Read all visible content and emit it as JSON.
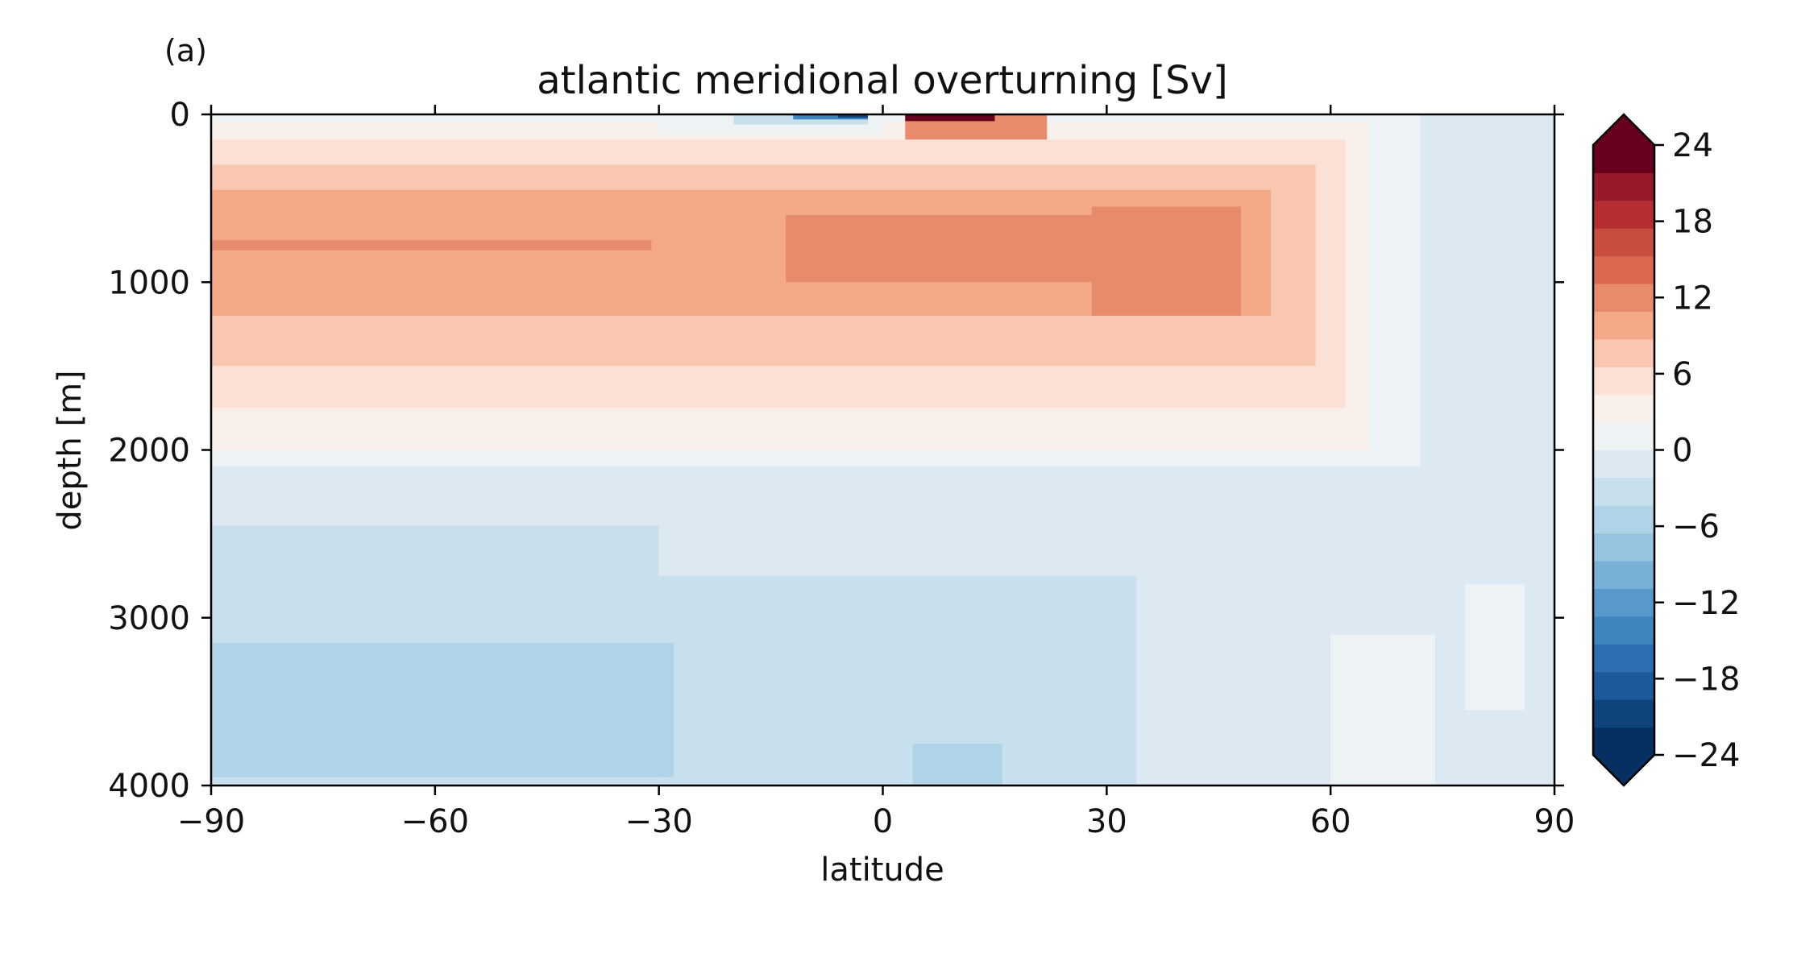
{
  "panel_label": "(a)",
  "colors": {
    "levels": [
      "#053061",
      "#0f437b",
      "#1c5a99",
      "#2b6fb0",
      "#3c85bd",
      "#5699ca",
      "#78b0d6",
      "#97c4e0",
      "#b0d4e7",
      "#c8e0ed",
      "#dce9f2",
      "#edf2f5",
      "#f9f0ec",
      "#fce0d3",
      "#f9c7b0",
      "#f4a989",
      "#e88b6d",
      "#d9684f",
      "#c84e41",
      "#b72e32",
      "#961a2c",
      "#67001f"
    ],
    "under": "#053061",
    "over": "#67001f"
  },
  "chart_data": {
    "type": "heatmap",
    "title": "atlantic meridional overturning [Sv]",
    "xlabel": "latitude",
    "ylabel": "depth [m]",
    "xlim": [
      -90,
      90
    ],
    "ylim": [
      0,
      4000
    ],
    "y_inverted": true,
    "xticks": [
      -90,
      -60,
      -30,
      0,
      30,
      60,
      90
    ],
    "xtick_labels": [
      "−90",
      "−60",
      "−30",
      "0",
      "30",
      "60",
      "90"
    ],
    "yticks": [
      0,
      1000,
      2000,
      3000,
      4000
    ],
    "ytick_labels": [
      "0",
      "1000",
      "2000",
      "3000",
      "4000"
    ],
    "colorbar": {
      "min": -24,
      "max": 24,
      "ticks": [
        -24,
        -18,
        -12,
        -6,
        0,
        6,
        12,
        18,
        24
      ],
      "tick_labels": [
        "−24",
        "−18",
        "−12",
        "−6",
        "0",
        "6",
        "12",
        "18",
        "24"
      ],
      "extend": "both"
    },
    "regions": [
      {
        "x0": -90,
        "x1": 90,
        "y0": 0,
        "y1": 4000,
        "value": -1
      },
      {
        "x0": -90,
        "x1": 72,
        "y0": 0,
        "y1": 2100,
        "value": 1
      },
      {
        "x0": -90,
        "x1": 65,
        "y0": 50,
        "y1": 2000,
        "value": 3
      },
      {
        "x0": -90,
        "x1": 62,
        "y0": 150,
        "y1": 1750,
        "value": 5
      },
      {
        "x0": -90,
        "x1": 58,
        "y0": 300,
        "y1": 1500,
        "value": 8
      },
      {
        "x0": -90,
        "x1": 52,
        "y0": 450,
        "y1": 1200,
        "value": 10
      },
      {
        "x0": -90,
        "x1": -31,
        "y0": 750,
        "y1": 810,
        "value": 12
      },
      {
        "x0": -13,
        "x1": 48,
        "y0": 600,
        "y1": 1000,
        "value": 12
      },
      {
        "x0": 28,
        "x1": 48,
        "y0": 550,
        "y1": 1200,
        "value": 12
      },
      {
        "x0": 3,
        "x1": 22,
        "y0": 0,
        "y1": 150,
        "value": 12
      },
      {
        "x0": 3,
        "x1": 15,
        "y0": 0,
        "y1": 40,
        "value": 22
      },
      {
        "x0": -30,
        "x1": 0,
        "y0": 0,
        "y1": 120,
        "value": 0
      },
      {
        "x0": -20,
        "x1": -2,
        "y0": 0,
        "y1": 60,
        "value": -4
      },
      {
        "x0": -12,
        "x1": -2,
        "y0": 0,
        "y1": 30,
        "value": -14
      },
      {
        "x0": -6,
        "x1": -2,
        "y0": 0,
        "y1": 20,
        "value": -20
      },
      {
        "x0": -90,
        "x1": 72,
        "y0": 2100,
        "y1": 2450,
        "value": -1
      },
      {
        "x0": -90,
        "x1": -30,
        "y0": 2450,
        "y1": 4000,
        "value": -3
      },
      {
        "x0": -30,
        "x1": 34,
        "y0": 2750,
        "y1": 4000,
        "value": -3
      },
      {
        "x0": -90,
        "x1": -28,
        "y0": 3150,
        "y1": 3950,
        "value": -5
      },
      {
        "x0": 4,
        "x1": 16,
        "y0": 3750,
        "y1": 4000,
        "value": -5
      },
      {
        "x0": 60,
        "x1": 74,
        "y0": 3100,
        "y1": 4000,
        "value": 1
      },
      {
        "x0": 78,
        "x1": 86,
        "y0": 2800,
        "y1": 3550,
        "value": 1
      },
      {
        "x0": 86,
        "x1": 90,
        "y0": 0,
        "y1": 4000,
        "value": -1
      }
    ]
  }
}
